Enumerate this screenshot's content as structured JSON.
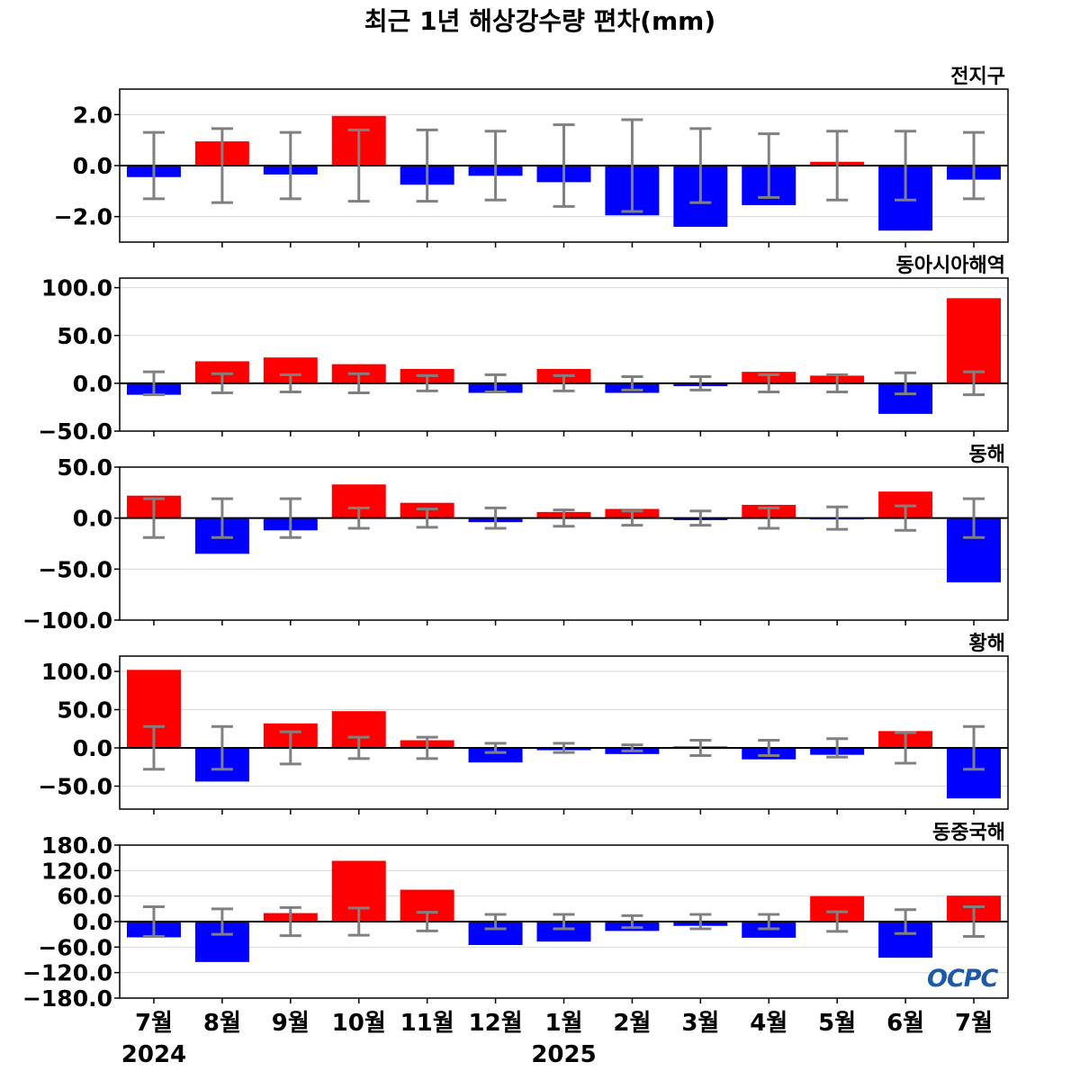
{
  "title": "최근 1년 해상강수량 편차(mm)",
  "logo_text": "OCPC",
  "colors": {
    "positive": "#ff0000",
    "negative": "#0000ff",
    "errorbar": "#808080",
    "grid": "#d9d9d9"
  },
  "chart_data": [
    {
      "type": "bar",
      "panel_label": "전지구",
      "categories": [
        "7월",
        "8월",
        "9월",
        "10월",
        "11월",
        "12월",
        "1월",
        "2월",
        "3월",
        "4월",
        "5월",
        "6월",
        "7월"
      ],
      "values": [
        -0.45,
        0.95,
        -0.35,
        1.95,
        -0.75,
        -0.4,
        -0.65,
        -1.95,
        -2.4,
        -1.55,
        0.15,
        -2.55,
        -0.55
      ],
      "error": [
        1.3,
        1.45,
        1.3,
        1.4,
        1.4,
        1.35,
        1.6,
        1.8,
        1.45,
        1.25,
        1.35,
        1.35,
        1.3
      ],
      "ylim": [
        -3.0,
        3.0
      ],
      "yticks": [
        2.0,
        0.0,
        -2.0
      ],
      "ytick_labels": [
        "2.0",
        "0.0",
        "−2.0"
      ]
    },
    {
      "type": "bar",
      "panel_label": "동아시아해역",
      "categories": [
        "7월",
        "8월",
        "9월",
        "10월",
        "11월",
        "12월",
        "1월",
        "2월",
        "3월",
        "4월",
        "5월",
        "6월",
        "7월"
      ],
      "values": [
        -12,
        23,
        27,
        20,
        15,
        -10,
        15,
        -10,
        -3,
        12,
        8,
        -32,
        89
      ],
      "error": [
        12,
        10,
        9,
        10,
        8,
        9,
        8,
        7,
        7,
        9,
        9,
        11,
        12
      ],
      "ylim": [
        -50,
        110
      ],
      "yticks": [
        100,
        50,
        0,
        -50
      ],
      "ytick_labels": [
        "100.0",
        "50.0",
        "0.0",
        "−50.0"
      ]
    },
    {
      "type": "bar",
      "panel_label": "동해",
      "categories": [
        "7월",
        "8월",
        "9월",
        "10월",
        "11월",
        "12월",
        "1월",
        "2월",
        "3월",
        "4월",
        "5월",
        "6월",
        "7월"
      ],
      "values": [
        22,
        -35,
        -12,
        33,
        15,
        -4,
        6,
        9,
        -2,
        13,
        -1,
        26,
        -63
      ],
      "error": [
        19,
        19,
        19,
        10,
        9,
        10,
        8,
        7,
        7,
        10,
        11,
        12,
        19
      ],
      "ylim": [
        -100,
        50
      ],
      "yticks": [
        50,
        0,
        -50,
        -100
      ],
      "ytick_labels": [
        "50.0",
        "0.0",
        "−50.0",
        "−100.0"
      ]
    },
    {
      "type": "bar",
      "panel_label": "황해",
      "categories": [
        "7월",
        "8월",
        "9월",
        "10월",
        "11월",
        "12월",
        "1월",
        "2월",
        "3월",
        "4월",
        "5월",
        "6월",
        "7월"
      ],
      "values": [
        102,
        -44,
        32,
        48,
        10,
        -19,
        -3,
        -8,
        2,
        -15,
        -9,
        22,
        -66
      ],
      "error": [
        28,
        28,
        21,
        14,
        14,
        6,
        6,
        4,
        10,
        10,
        12,
        20,
        28
      ],
      "ylim": [
        -80,
        120
      ],
      "yticks": [
        100,
        50,
        0,
        -50
      ],
      "ytick_labels": [
        "100.0",
        "50.0",
        "0.0",
        "−50.0"
      ]
    },
    {
      "type": "bar",
      "panel_label": "동중국해",
      "categories": [
        "7월",
        "8월",
        "9월",
        "10월",
        "11월",
        "12월",
        "1월",
        "2월",
        "3월",
        "4월",
        "5월",
        "6월",
        "7월"
      ],
      "values": [
        -37,
        -95,
        20,
        143,
        75,
        -55,
        -47,
        -22,
        -10,
        -38,
        60,
        -85,
        61
      ],
      "error": [
        35,
        30,
        33,
        32,
        22,
        17,
        17,
        14,
        17,
        17,
        23,
        28,
        35
      ],
      "ylim": [
        -180,
        180
      ],
      "yticks": [
        180,
        120,
        60,
        0,
        -60,
        -120,
        -180
      ],
      "ytick_labels": [
        "180.0",
        "120.0",
        "60.0",
        "0.0",
        "−60.0",
        "−120.0",
        "−180.0"
      ]
    }
  ],
  "x_axis": {
    "tick_labels": [
      "7월",
      "8월",
      "9월",
      "10월",
      "11월",
      "12월",
      "1월",
      "2월",
      "3월",
      "4월",
      "5월",
      "6월",
      "7월"
    ],
    "year_labels": [
      {
        "index": 0,
        "text": "2024"
      },
      {
        "index": 6,
        "text": "2025"
      }
    ]
  }
}
